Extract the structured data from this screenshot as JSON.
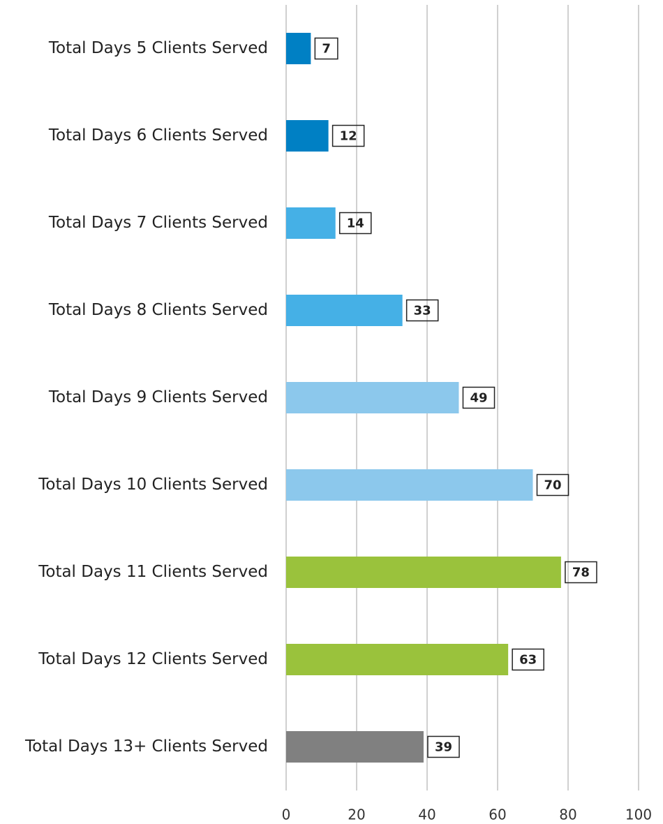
{
  "chart_data": {
    "type": "bar",
    "orientation": "horizontal",
    "categories": [
      "Total Days 5 Clients Served",
      "Total Days 6 Clients Served",
      "Total Days 7 Clients Served",
      "Total Days 8 Clients Served",
      "Total Days 9 Clients Served",
      "Total Days 10 Clients Served",
      "Total Days 11 Clients Served",
      "Total Days 12 Clients Served",
      "Total Days 13+ Clients Served"
    ],
    "values": [
      7,
      12,
      14,
      33,
      49,
      70,
      78,
      63,
      39
    ],
    "colors": [
      "#0080c4",
      "#0080c4",
      "#45b0e6",
      "#45b0e6",
      "#8cc8ec",
      "#8cc8ec",
      "#9ac23c",
      "#9ac23c",
      "#808080"
    ],
    "xlim": [
      0,
      100
    ],
    "xticks": [
      0,
      20,
      40,
      60,
      80,
      100
    ],
    "grid": true
  }
}
